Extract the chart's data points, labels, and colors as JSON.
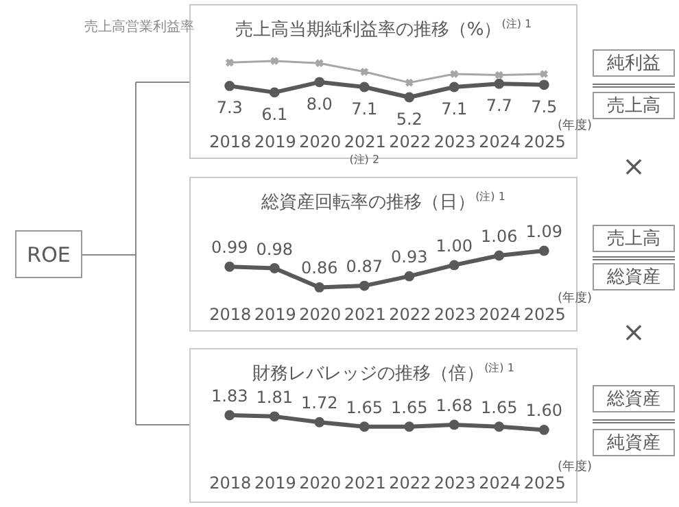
{
  "chart_data": [
    {
      "type": "line",
      "title": "売上高当期純利益率の推移（%）$^{(注) 1}$",
      "categories": [
        "2018",
        "2019",
        "2020",
        "2021",
        "2022",
        "2023",
        "2024",
        "2025"
      ],
      "tick_labels": "x",
      "annotations": [
        "(年度)",
        "(注) 2"
      ],
      "series": [
        {
          "name": "売上高営業利益率",
          "color": "#a6a6a6",
          "marker": "cross",
          "values": [
            11.6,
            11.9,
            11.5,
            9.9,
            7.9,
            9.5,
            9.3,
            9.5
          ]
        },
        {
          "color": "#595959",
          "marker": "circle",
          "values": [
            7.3,
            6.1,
            8.0,
            7.1,
            5.2,
            7.1,
            7.7,
            7.5
          ],
          "value_labels": [
            "7.3",
            "6.1",
            "8.0",
            "7.1",
            "5.2",
            "7.1",
            "7.7",
            "7.5"
          ]
        }
      ]
    },
    {
      "type": "line",
      "title": "総資産回転率の推移（日）$^{(注) 1}$",
      "categories": [
        "2018",
        "2019",
        "2020",
        "2021",
        "2022",
        "2023",
        "2024",
        "2025"
      ],
      "tick_labels": "x",
      "annotations": [
        "(年度)"
      ],
      "series": [
        {
          "color": "#595959",
          "marker": "circle",
          "values": [
            0.99,
            0.98,
            0.86,
            0.87,
            0.93,
            1.0,
            1.06,
            1.09
          ],
          "value_labels": [
            "0.99",
            "0.98",
            "0.86",
            "0.87",
            "0.93",
            "1.00",
            "1.06",
            "1.09"
          ]
        }
      ]
    },
    {
      "type": "line",
      "title": "財務レバレッジの推移（倍）$^{(注) 1}$",
      "categories": [
        "2018",
        "2019",
        "2020",
        "2021",
        "2022",
        "2023",
        "2024",
        "2025"
      ],
      "tick_labels": "x",
      "annotations": [
        "(年度)"
      ],
      "series": [
        {
          "color": "#595959",
          "marker": "circle",
          "values": [
            1.83,
            1.81,
            1.72,
            1.65,
            1.65,
            1.68,
            1.65,
            1.6
          ],
          "value_labels": [
            "1.83",
            "1.81",
            "1.72",
            "1.65",
            "1.65",
            "1.68",
            "1.65",
            "1.60"
          ]
        }
      ]
    },
    {
      "type": "other",
      "annotations": [
        "ROE",
        "純利益",
        "売上高",
        "×",
        "売上高",
        "総資産",
        "×",
        "総資産",
        "純資産"
      ]
    }
  ]
}
